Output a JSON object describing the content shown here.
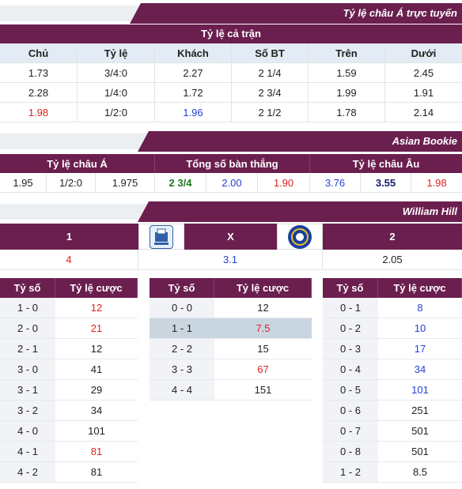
{
  "section1": {
    "banner_title": "Tỷ lệ châu Á trực tuyến",
    "subheader": "Tỷ lệ cả trận",
    "columns": [
      "Chủ",
      "Tỷ lệ",
      "Khách",
      "Số BT",
      "Trên",
      "Dưới"
    ],
    "rows": [
      [
        "1.73",
        "3/4:0",
        "2.27",
        "2 1/4",
        "1.59",
        "2.45"
      ],
      [
        "2.28",
        "1/4:0",
        "1.72",
        "2 3/4",
        "1.99",
        "1.91"
      ],
      [
        "1.98",
        "1/2:0",
        "1.96",
        "2 1/2",
        "1.78",
        "2.14"
      ]
    ]
  },
  "section2": {
    "banner_title": "Asian Bookie",
    "headers": [
      "Tỷ lệ châu Á",
      "Tổng số bàn thắng",
      "Tỷ lệ châu Âu"
    ],
    "values": [
      "1.95",
      "1/2:0",
      "1.975",
      "2 3/4",
      "2.00",
      "1.90",
      "3.76",
      "3.55",
      "1.98"
    ]
  },
  "section3": {
    "banner_title": "William Hill",
    "labels": [
      "1",
      "X",
      "2"
    ],
    "values": [
      "4",
      "3.1",
      "2.05"
    ],
    "home_logo": "everton-crest-icon",
    "away_logo": "chelsea-crest-icon"
  },
  "scores": {
    "col_score": "Tỷ số",
    "col_odds": "Tỷ lệ cược",
    "home": [
      [
        "1 - 0",
        "12"
      ],
      [
        "2 - 0",
        "21"
      ],
      [
        "2 - 1",
        "12"
      ],
      [
        "3 - 0",
        "41"
      ],
      [
        "3 - 1",
        "29"
      ],
      [
        "3 - 2",
        "34"
      ],
      [
        "4 - 0",
        "101"
      ],
      [
        "4 - 1",
        "81"
      ],
      [
        "4 - 2",
        "81"
      ]
    ],
    "draw": [
      [
        "0 - 0",
        "12"
      ],
      [
        "1 - 1",
        "7.5"
      ],
      [
        "2 - 2",
        "15"
      ],
      [
        "3 - 3",
        "67"
      ],
      [
        "4 - 4",
        "151"
      ]
    ],
    "away": [
      [
        "0 - 1",
        "8"
      ],
      [
        "0 - 2",
        "10"
      ],
      [
        "0 - 3",
        "17"
      ],
      [
        "0 - 4",
        "34"
      ],
      [
        "0 - 5",
        "101"
      ],
      [
        "0 - 6",
        "251"
      ],
      [
        "0 - 7",
        "501"
      ],
      [
        "0 - 8",
        "501"
      ],
      [
        "1 - 2",
        "8.5"
      ]
    ]
  },
  "colors": {
    "accent": "#6b1f4f",
    "header_bg": "#e3ecf5",
    "red": "#e02020",
    "blue": "#2440d4"
  }
}
